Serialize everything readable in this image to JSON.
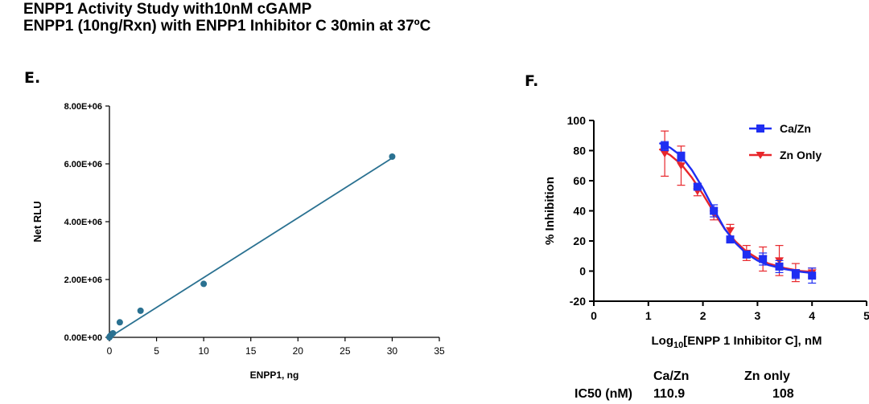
{
  "header": {
    "line1": "ENPP1 Activity Study with10nM cGAMP",
    "line2": "ENPP1 (10ng/Rxn) with ENPP1 Inhibitor C 30min at 37ºC"
  },
  "panels": {
    "e_label": "E.",
    "f_label": "F."
  },
  "colors": {
    "teal": "#2a7191",
    "blue": "#1f2ef2",
    "red": "#e8262b"
  },
  "chart_data": [
    {
      "id": "E",
      "type": "scatter",
      "title": "",
      "xlabel": "ENPP1, ng",
      "ylabel": "Net RLU",
      "xlim": [
        0,
        35
      ],
      "ylim": [
        0,
        8000000
      ],
      "xticks": [
        0,
        5,
        10,
        15,
        20,
        25,
        30,
        35
      ],
      "yticks": [
        0,
        2000000,
        4000000,
        6000000,
        8000000
      ],
      "ytick_labels": [
        "0.00E+00",
        "2.00E+06",
        "4.00E+06",
        "6.00E+06",
        "8.00E+06"
      ],
      "points": [
        {
          "x": 0,
          "y": 0
        },
        {
          "x": 0.04,
          "y": 30000
        },
        {
          "x": 0.12,
          "y": 60000
        },
        {
          "x": 0.37,
          "y": 140000
        },
        {
          "x": 1.1,
          "y": 520000
        },
        {
          "x": 3.3,
          "y": 920000
        },
        {
          "x": 10,
          "y": 1850000
        },
        {
          "x": 30,
          "y": 6250000
        }
      ],
      "fit_line": {
        "x": [
          0,
          30
        ],
        "y": [
          0,
          6200000
        ]
      }
    },
    {
      "id": "F",
      "type": "line",
      "title": "",
      "xlabel_prefix": "Log",
      "xlabel_sub": "10",
      "xlabel_suffix": "[ENPP 1 Inhibitor C], nM",
      "ylabel": "% Inhibition",
      "xlim": [
        0,
        5
      ],
      "ylim": [
        -20,
        100
      ],
      "xticks": [
        0,
        1,
        2,
        3,
        4,
        5
      ],
      "yticks": [
        -20,
        0,
        20,
        40,
        60,
        80,
        100
      ],
      "legend_position": "top-right",
      "series": [
        {
          "name": "Ca/Zn",
          "marker": "square",
          "color": "#1f2ef2",
          "x": [
            1.3,
            1.6,
            1.9,
            2.2,
            2.5,
            2.8,
            3.1,
            3.4,
            3.7,
            4.0
          ],
          "y": [
            83,
            76,
            56,
            40,
            21,
            11,
            8,
            3,
            -2,
            -3
          ],
          "err": [
            3,
            3,
            2,
            4,
            2,
            2,
            4,
            4,
            3,
            5
          ],
          "curve": [
            [
              1.2,
              85
            ],
            [
              1.4,
              82
            ],
            [
              1.6,
              76.5
            ],
            [
              1.8,
              67
            ],
            [
              2.0,
              55
            ],
            [
              2.2,
              41
            ],
            [
              2.4,
              28
            ],
            [
              2.6,
              18.5
            ],
            [
              2.8,
              11.5
            ],
            [
              3.0,
              7
            ],
            [
              3.2,
              4
            ],
            [
              3.5,
              1.3
            ],
            [
              3.8,
              -0.5
            ],
            [
              4.0,
              -1.3
            ]
          ]
        },
        {
          "name": "Zn Only",
          "marker": "triangle-down",
          "color": "#e8262b",
          "x": [
            1.3,
            1.6,
            1.9,
            2.2,
            2.5,
            2.8,
            3.1,
            3.4,
            3.7,
            4.0
          ],
          "y": [
            78,
            70,
            53,
            38,
            27,
            12,
            8,
            7,
            -1,
            -1
          ],
          "err": [
            15,
            13,
            3,
            4,
            4,
            5,
            8,
            10,
            6,
            3
          ],
          "curve": [
            [
              1.2,
              81
            ],
            [
              1.4,
              77
            ],
            [
              1.6,
              71
            ],
            [
              1.8,
              62
            ],
            [
              2.0,
              51
            ],
            [
              2.2,
              39
            ],
            [
              2.4,
              28
            ],
            [
              2.6,
              19.5
            ],
            [
              2.8,
              13
            ],
            [
              3.0,
              8.5
            ],
            [
              3.2,
              5
            ],
            [
              3.5,
              2
            ],
            [
              3.8,
              0
            ],
            [
              4.0,
              -0.5
            ]
          ]
        }
      ]
    }
  ],
  "ic50_table": {
    "row_label": "IC50 (nM)",
    "col1_header": "Ca/Zn",
    "col2_header": "Zn only",
    "col1_value": "110.9",
    "col2_value": "108"
  }
}
